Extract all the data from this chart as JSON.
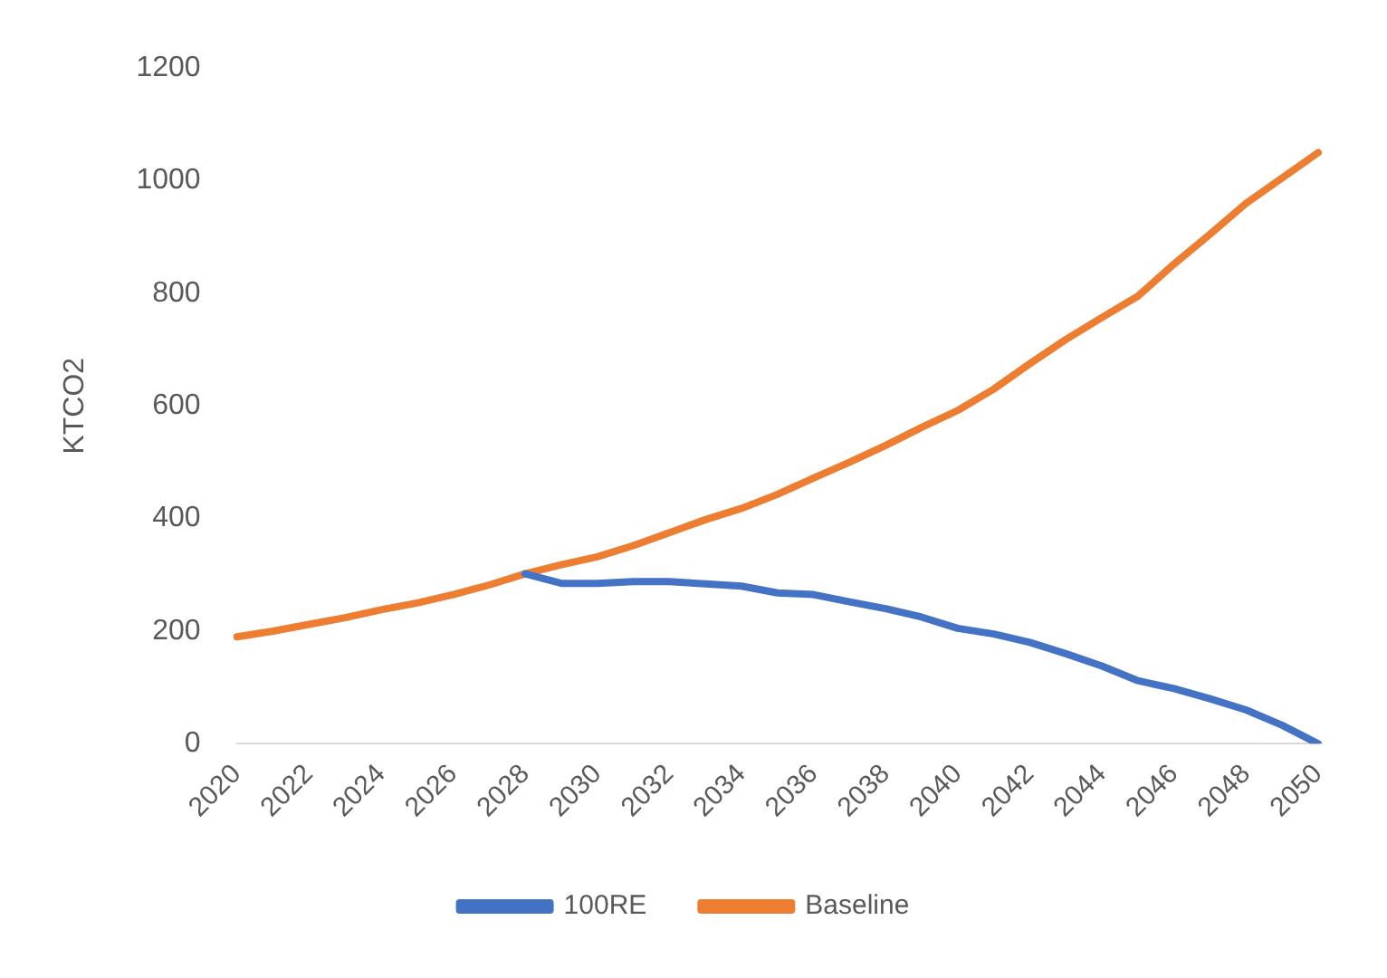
{
  "chart_data": {
    "type": "line",
    "ylabel": "KTCO2",
    "categories": [
      "2020",
      null,
      "2022",
      null,
      "2024",
      null,
      "2026",
      null,
      "2028",
      null,
      "2030",
      null,
      "2032",
      null,
      "2034",
      null,
      "2036",
      null,
      "2038",
      null,
      "2040",
      null,
      "2042",
      null,
      "2044",
      null,
      "2046",
      null,
      "2048",
      null,
      "2050"
    ],
    "series": [
      {
        "name": "100RE",
        "color": "#4472c4",
        "values": [
          null,
          null,
          null,
          null,
          null,
          null,
          null,
          null,
          302,
          285,
          285,
          288,
          288,
          284,
          280,
          268,
          265,
          252,
          240,
          225,
          205,
          195,
          180,
          160,
          138,
          112,
          98,
          80,
          60,
          33,
          0
        ]
      },
      {
        "name": "Baseline",
        "color": "#ed7d31",
        "values": [
          190,
          200,
          212,
          224,
          238,
          250,
          265,
          282,
          302,
          318,
          332,
          352,
          375,
          398,
          418,
          443,
          472,
          500,
          530,
          562,
          592,
          630,
          675,
          718,
          757,
          795,
          852,
          905,
          960,
          1005,
          1050
        ]
      }
    ],
    "ylim": [
      0,
      1200
    ],
    "yticks": [
      0,
      200,
      400,
      600,
      800,
      1000,
      1200
    ],
    "grid": false,
    "legend": "bottom",
    "marker": "none",
    "line_style": "solid"
  }
}
